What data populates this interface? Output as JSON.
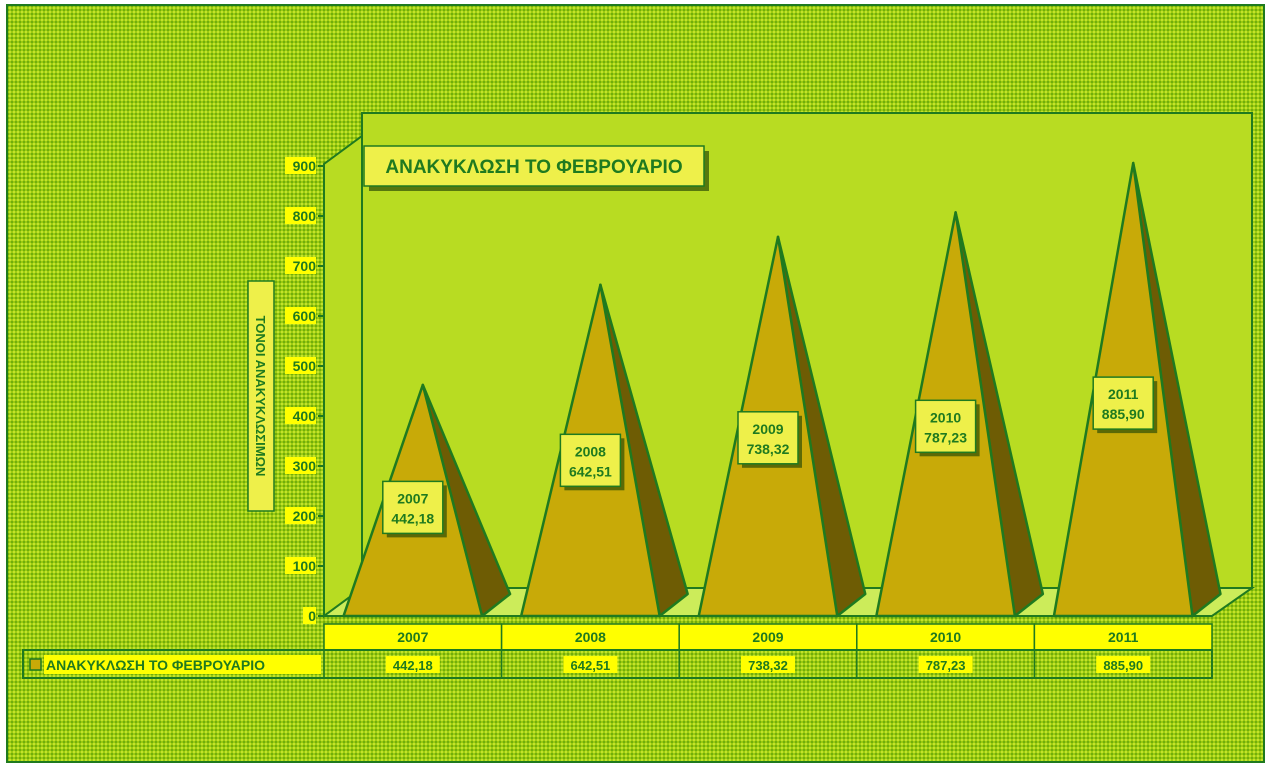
{
  "chart_data": {
    "type": "bar",
    "style": "3d-pyramid",
    "title": "ΑΝΑΚΥΚΛΩΣΗ ΤΟ ΦΕΒΡΟΥΑΡΙΟ",
    "xlabel": "",
    "ylabel": "ΤΟΝΟΙ ΑΝΑΚΥΚΛΩΣΙΜΩΝ",
    "categories": [
      "2007",
      "2008",
      "2009",
      "2010",
      "2011"
    ],
    "series": [
      {
        "name": "ΑΝΑΚΥΚΛΩΣΗ ΤΟ ΦΕΒΡΟΥΑΡΙΟ",
        "values": [
          442.18,
          642.51,
          738.32,
          787.23,
          885.9
        ],
        "labels": [
          "442,18",
          "642,51",
          "738,32",
          "787,23",
          "885,90"
        ]
      }
    ],
    "ylim": [
      0,
      900
    ],
    "yticks": [
      "0",
      "100",
      "200",
      "300",
      "400",
      "500",
      "600",
      "700",
      "800",
      "900"
    ],
    "grid": false,
    "legend": "data-table",
    "data_table": true
  },
  "colors": {
    "background": "#9ccc10",
    "wall": "#b8dc22",
    "floor": "#ccec5a",
    "outline": "#1f7a1f",
    "pyramid_front": "#c8aa08",
    "pyramid_side": "#6e5c04",
    "label_bg": "#eef04a",
    "tick_bg": "#ffff00",
    "axis_text": "#1f7a1f"
  }
}
